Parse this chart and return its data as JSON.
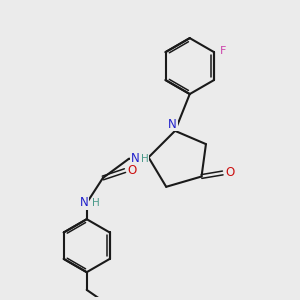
{
  "bg_color": "#ebebeb",
  "bond_color": "#1a1a1a",
  "N_color": "#2020cc",
  "O_color": "#cc1010",
  "F_color": "#cc44aa",
  "H_color": "#4a9a8a",
  "figsize": [
    3.0,
    3.0
  ],
  "dpi": 100,
  "xlim": [
    0,
    10
  ],
  "ylim": [
    0,
    10
  ]
}
